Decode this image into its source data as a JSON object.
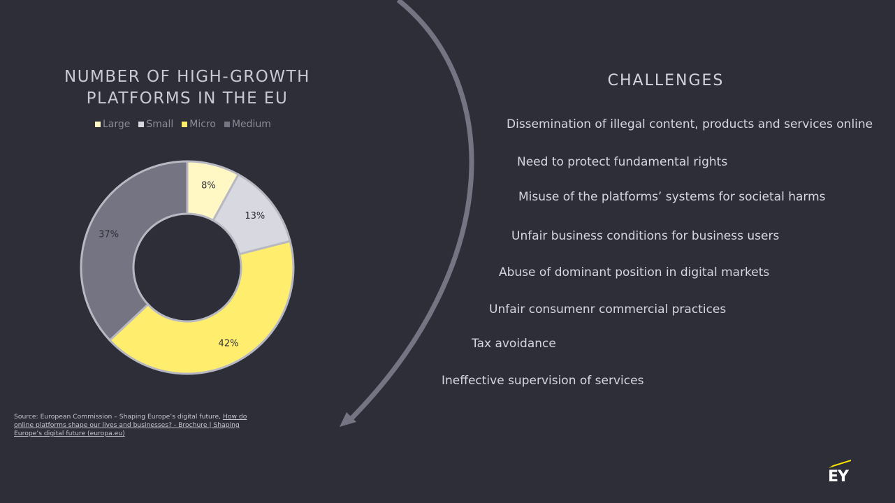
{
  "chart_data": {
    "type": "pie",
    "title": "NUMBER OF HIGH-GROWTH\nPLATFORMS IN THE EU",
    "categories": [
      "Large",
      "Small",
      "Micro",
      "Medium"
    ],
    "values": [
      8,
      13,
      42,
      37
    ],
    "value_labels": [
      "8%",
      "13%",
      "42%",
      "37%"
    ],
    "colors": [
      "#fff8c4",
      "#d8d8e0",
      "#ffee6e",
      "#747482"
    ],
    "donut": true,
    "legend_position": "top"
  },
  "challenges": {
    "title": "CHALLENGES",
    "items": [
      "Dissemination of illegal content, products and services online",
      "Need to protect fundamental rights",
      "Misuse of the platforms’ systems for societal harms",
      "Unfair business conditions for business users",
      "Abuse of dominant position in digital markets",
      "Unfair consumenr commercial practices",
      "Tax avoidance",
      "Ineffective supervision of services"
    ]
  },
  "source": {
    "prefix": "Source: European Commission – Shaping Europe’s digital future, ",
    "link_text": "How do online platforms shape our lives and businesses? - Brochure | Shaping Europe’s digital future (europa.eu)"
  },
  "logo": {
    "text": "EY"
  },
  "colors": {
    "background": "#2e2e38",
    "arc": "#747482",
    "ey_yellow": "#ffe600"
  }
}
